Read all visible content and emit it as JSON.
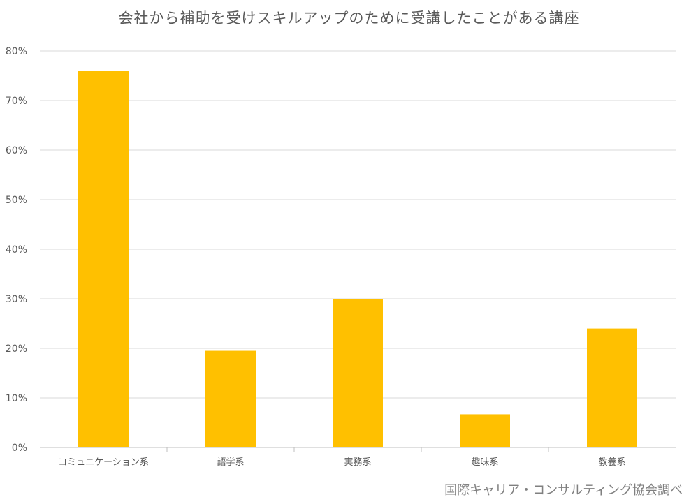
{
  "chart_data": {
    "type": "bar",
    "title": "会社から補助を受けスキルアップのために受講したことがある講座",
    "xlabel": "",
    "ylabel": "",
    "categories": [
      "コミュニケーション系",
      "語学系",
      "実務系",
      "趣味系",
      "教養系"
    ],
    "values": [
      76,
      19.5,
      30,
      6.7,
      24
    ],
    "ylim": [
      0,
      80
    ],
    "yticks": [
      0,
      10,
      20,
      30,
      40,
      50,
      60,
      70,
      80
    ],
    "ytick_suffix": "%",
    "grid": true,
    "legend": "none",
    "bar_color": "#FFC000"
  },
  "source_note": "国際キャリア・コンサルティング協会調べ"
}
